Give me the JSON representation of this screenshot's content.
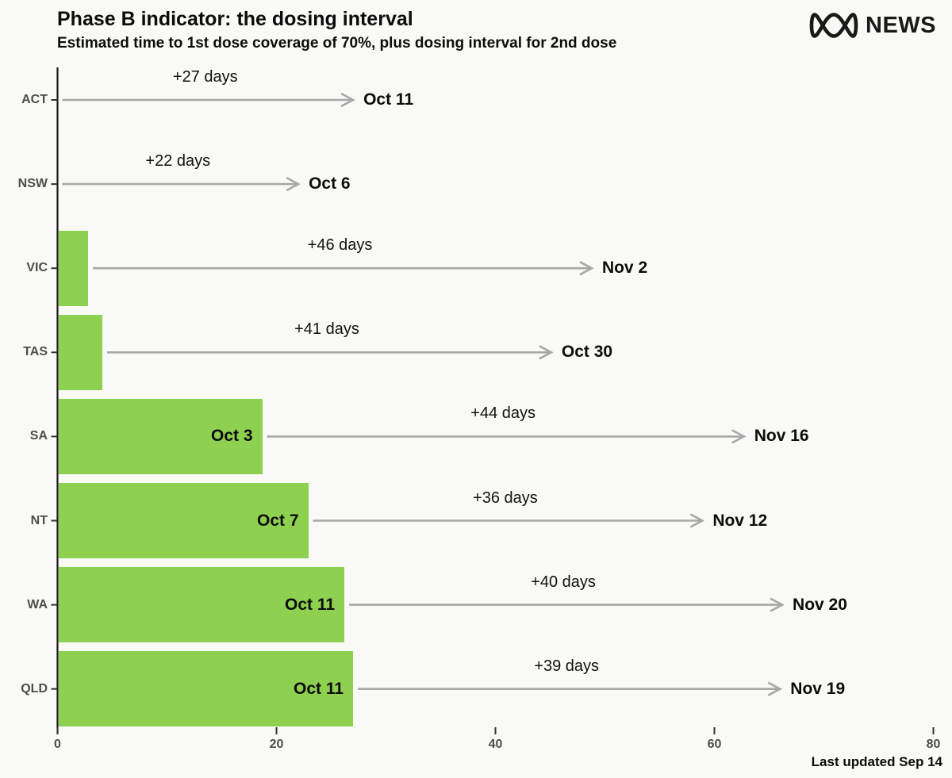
{
  "header": {
    "title": "Phase B indicator: the dosing interval",
    "subtitle": "Estimated time to 1st dose coverage of 70%, plus dosing interval for 2nd dose",
    "logo": {
      "icon": "abc-lissajous-icon",
      "text": "NEWS"
    }
  },
  "footer": {
    "last_updated": "Last updated Sep 14"
  },
  "chart_data": {
    "type": "bar",
    "orientation": "horizontal",
    "title": "Phase B indicator: the dosing interval",
    "subtitle": "Estimated time to 1st dose coverage of 70%, plus dosing interval for 2nd dose",
    "xlabel": "",
    "ylabel": "",
    "xlim": [
      0,
      81.5
    ],
    "x_ticks": [
      0,
      20,
      40,
      60,
      80
    ],
    "grid": false,
    "legend": false,
    "bar_color": "#8ed04f",
    "arrow_color": "#a8a8a8",
    "axis_color": "#1a1a1a",
    "categories": [
      "ACT",
      "NSW",
      "VIC",
      "TAS",
      "SA",
      "NT",
      "WA",
      "QLD"
    ],
    "rows": [
      {
        "state": "ACT",
        "days_to_70pct": 0,
        "first_dose_date": "",
        "interval_days": 27,
        "interval_label": "+27 days",
        "second_dose_date": "Oct 11"
      },
      {
        "state": "NSW",
        "days_to_70pct": 0,
        "first_dose_date": "",
        "interval_days": 22,
        "interval_label": "+22 days",
        "second_dose_date": "Oct 6"
      },
      {
        "state": "VIC",
        "days_to_70pct": 2.8,
        "first_dose_date": "",
        "interval_days": 46,
        "interval_label": "+46 days",
        "second_dose_date": "Nov 2"
      },
      {
        "state": "TAS",
        "days_to_70pct": 4.1,
        "first_dose_date": "",
        "interval_days": 41,
        "interval_label": "+41 days",
        "second_dose_date": "Oct 30"
      },
      {
        "state": "SA",
        "days_to_70pct": 18.7,
        "first_dose_date": "Oct 3",
        "interval_days": 44,
        "interval_label": "+44 days",
        "second_dose_date": "Nov 16"
      },
      {
        "state": "NT",
        "days_to_70pct": 22.9,
        "first_dose_date": "Oct 7",
        "interval_days": 36,
        "interval_label": "+36 days",
        "second_dose_date": "Nov 12"
      },
      {
        "state": "WA",
        "days_to_70pct": 26.2,
        "first_dose_date": "Oct 11",
        "interval_days": 40,
        "interval_label": "+40 days",
        "second_dose_date": "Nov 20"
      },
      {
        "state": "QLD",
        "days_to_70pct": 27.0,
        "first_dose_date": "Oct 11",
        "interval_days": 39,
        "interval_label": "+39 days",
        "second_dose_date": "Nov 19"
      }
    ]
  }
}
